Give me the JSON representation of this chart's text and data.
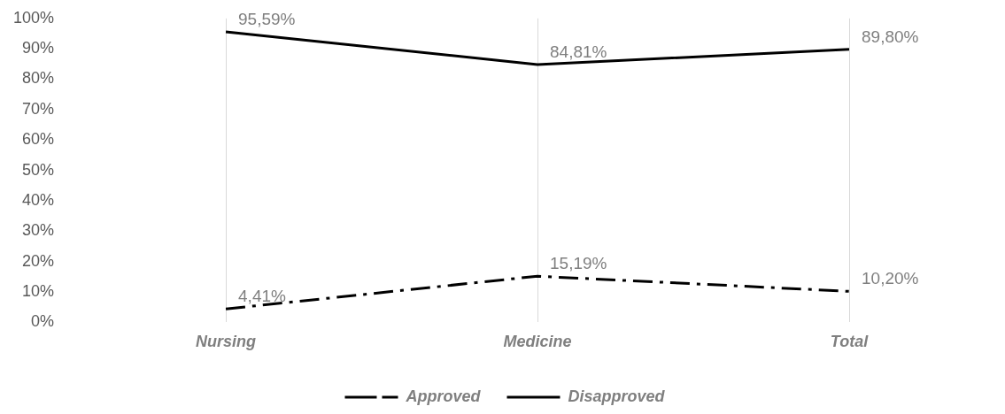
{
  "chart_data": {
    "type": "line",
    "categories": [
      "Nursing",
      "Medicine",
      "Total"
    ],
    "series": [
      {
        "name": "Approved",
        "color": "#000000",
        "line_style": "dashdot",
        "values": [
          4.41,
          15.19,
          10.2
        ],
        "value_labels": [
          "4,41%",
          "15,19%",
          "10,20%"
        ]
      },
      {
        "name": "Disapproved",
        "color": "#000000",
        "line_style": "solid",
        "values": [
          95.59,
          84.81,
          89.8
        ],
        "value_labels": [
          "95,59%",
          "84,81%",
          "89,80%"
        ]
      }
    ],
    "ylim": [
      0,
      100
    ],
    "yticks": [
      {
        "value": 0,
        "label": "0%"
      },
      {
        "value": 10,
        "label": "10%"
      },
      {
        "value": 20,
        "label": "20%"
      },
      {
        "value": 30,
        "label": "30%"
      },
      {
        "value": 40,
        "label": "40%"
      },
      {
        "value": 50,
        "label": "50%"
      },
      {
        "value": 60,
        "label": "60%"
      },
      {
        "value": 70,
        "label": "70%"
      },
      {
        "value": 80,
        "label": "80%"
      },
      {
        "value": 90,
        "label": "90%"
      },
      {
        "value": 100,
        "label": "100%"
      }
    ],
    "grid": "x",
    "legend": "bottom",
    "marker": "none"
  }
}
